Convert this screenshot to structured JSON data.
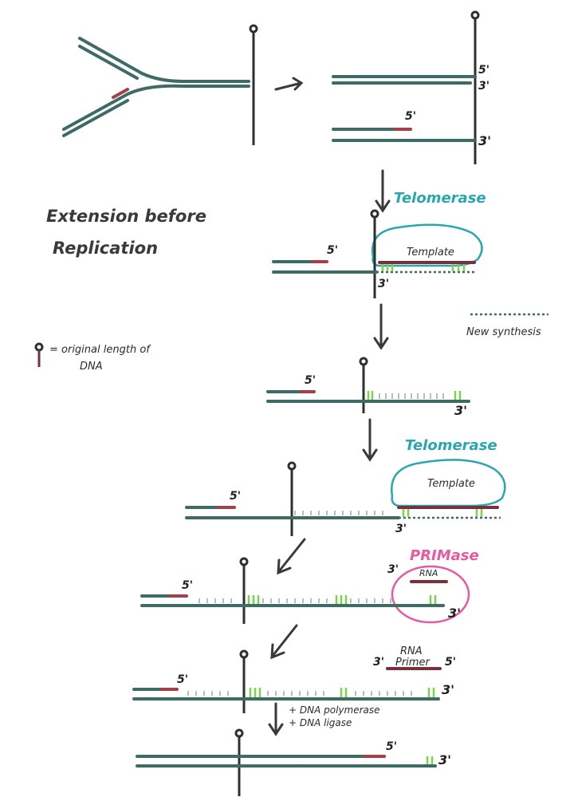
{
  "title": [
    "Extension before",
    "Replication"
  ],
  "legend": {
    "marker_text": "= original length of",
    "marker_text2": "DNA",
    "new_synthesis": "New synthesis"
  },
  "labels": {
    "five_prime": "5'",
    "three_prime": "3'",
    "telomerase": "Telomerase",
    "template": "Template",
    "primase": "PRIMase",
    "rna": "RNA",
    "rna_primer_1": "RNA",
    "rna_primer_2": "Primer",
    "step_note_1": "+ DNA polymerase",
    "step_note_2": "+ DNA ligase"
  },
  "colors": {
    "strand": "#3e6b63",
    "end_segment": "#a3404a",
    "telomerase": "#2aa6ad",
    "primase": "#e85aa0",
    "new_synthesis_marks": "#7bd24c"
  }
}
